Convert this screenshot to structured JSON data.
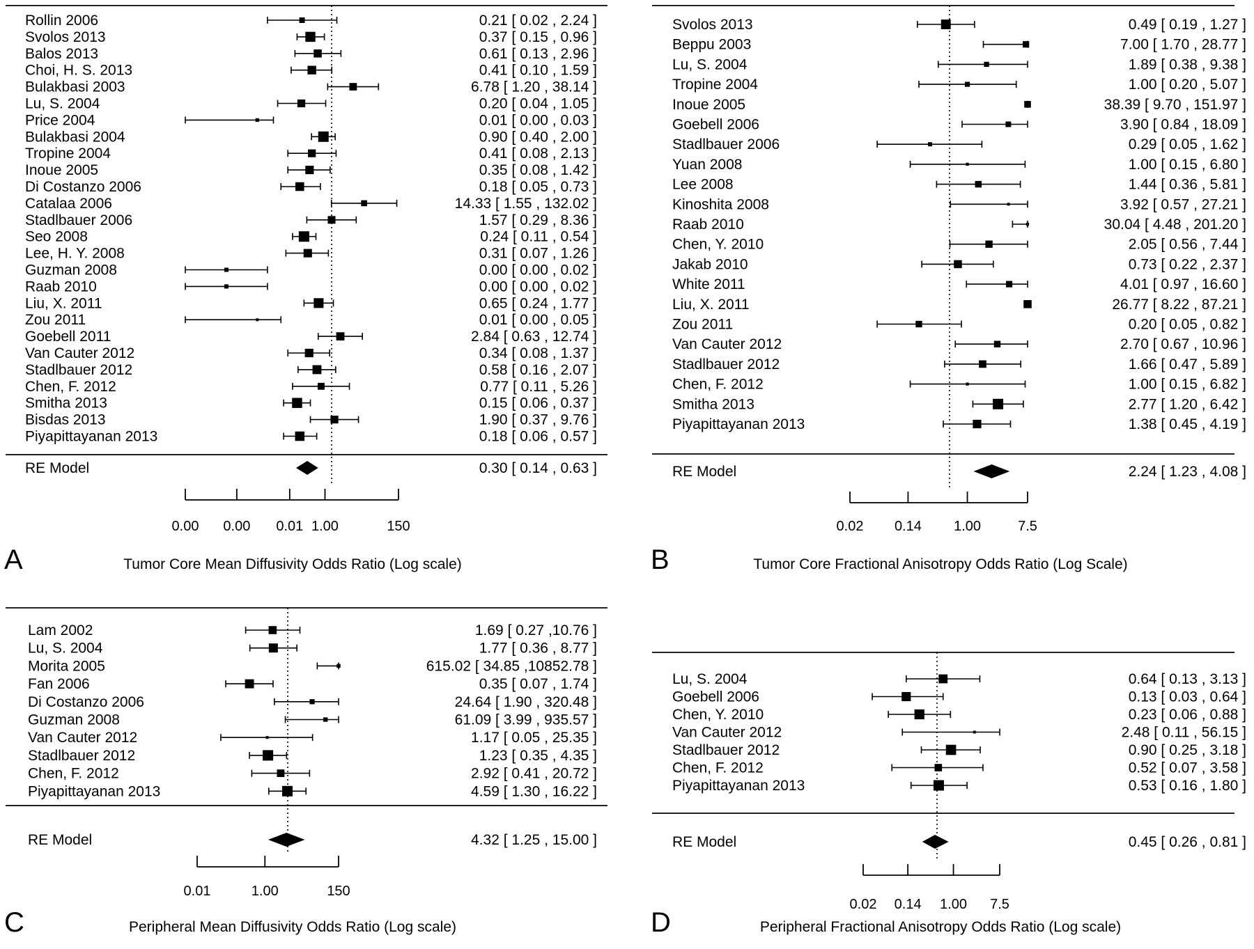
{
  "chart_data": [
    {
      "type": "forest",
      "panel_letter": "A",
      "xlabel": "Tumor Core Mean Diffusivity Odds Ratio (Log scale)",
      "x_ticks": [
        "0.00",
        "0.00",
        "0.01",
        "1.00",
        "150"
      ],
      "studies": [
        {
          "name": "Rollin 2006",
          "or": 0.21,
          "lo": 0.02,
          "hi": 2.24,
          "ci_text": "0.21 [ 0.02 ,  2.24 ]"
        },
        {
          "name": "Svolos 2013",
          "or": 0.37,
          "lo": 0.15,
          "hi": 0.96,
          "ci_text": "0.37 [ 0.15 ,  0.96 ]"
        },
        {
          "name": "Balos 2013",
          "or": 0.61,
          "lo": 0.13,
          "hi": 2.96,
          "ci_text": "0.61 [ 0.13 ,  2.96 ]"
        },
        {
          "name": "Choi, H. S. 2013",
          "or": 0.41,
          "lo": 0.1,
          "hi": 1.59,
          "ci_text": "0.41 [ 0.10 ,  1.59 ]"
        },
        {
          "name": "Bulakbasi 2003",
          "or": 6.78,
          "lo": 1.2,
          "hi": 38.14,
          "ci_text": "6.78 [ 1.20 , 38.14 ]"
        },
        {
          "name": "Lu, S. 2004",
          "or": 0.2,
          "lo": 0.04,
          "hi": 1.05,
          "ci_text": "0.20 [ 0.04 ,  1.05 ]"
        },
        {
          "name": "Price 2004",
          "or": 0.01,
          "lo": 0.0,
          "hi": 0.03,
          "ci_text": "0.01 [ 0.00 ,  0.03 ]"
        },
        {
          "name": "Bulakbasi 2004",
          "or": 0.9,
          "lo": 0.4,
          "hi": 2.0,
          "ci_text": "0.90 [ 0.40 ,  2.00 ]"
        },
        {
          "name": "Tropine 2004",
          "or": 0.41,
          "lo": 0.08,
          "hi": 2.13,
          "ci_text": "0.41 [ 0.08 ,  2.13 ]"
        },
        {
          "name": "Inoue 2005",
          "or": 0.35,
          "lo": 0.08,
          "hi": 1.42,
          "ci_text": "0.35 [ 0.08 ,  1.42 ]"
        },
        {
          "name": "Di Costanzo 2006",
          "or": 0.18,
          "lo": 0.05,
          "hi": 0.73,
          "ci_text": "0.18 [ 0.05 ,  0.73 ]"
        },
        {
          "name": "Catalaa 2006",
          "or": 14.33,
          "lo": 1.55,
          "hi": 132.02,
          "ci_text": "14.33 [ 1.55 , 132.02 ]"
        },
        {
          "name": "Stadlbauer 2006",
          "or": 1.57,
          "lo": 0.29,
          "hi": 8.36,
          "ci_text": "1.57 [ 0.29 ,  8.36 ]"
        },
        {
          "name": "Seo 2008",
          "or": 0.24,
          "lo": 0.11,
          "hi": 0.54,
          "ci_text": "0.24 [ 0.11 ,  0.54 ]"
        },
        {
          "name": "Lee, H. Y. 2008",
          "or": 0.31,
          "lo": 0.07,
          "hi": 1.26,
          "ci_text": "0.31 [ 0.07 ,  1.26 ]"
        },
        {
          "name": "Guzman 2008",
          "or": 0.0,
          "lo": 0.0,
          "hi": 0.02,
          "ci_text": "0.00 [ 0.00 ,  0.02 ]"
        },
        {
          "name": "Raab 2010",
          "or": 0.0,
          "lo": 0.0,
          "hi": 0.02,
          "ci_text": "0.00 [ 0.00 ,  0.02 ]"
        },
        {
          "name": "Liu, X. 2011",
          "or": 0.65,
          "lo": 0.24,
          "hi": 1.77,
          "ci_text": "0.65 [ 0.24 ,  1.77 ]"
        },
        {
          "name": "Zou 2011",
          "or": 0.01,
          "lo": 0.0,
          "hi": 0.05,
          "ci_text": "0.01 [ 0.00 ,  0.05 ]"
        },
        {
          "name": "Goebell 2011",
          "or": 2.84,
          "lo": 0.63,
          "hi": 12.74,
          "ci_text": "2.84 [ 0.63 , 12.74 ]"
        },
        {
          "name": "Van Cauter 2012",
          "or": 0.34,
          "lo": 0.08,
          "hi": 1.37,
          "ci_text": "0.34 [ 0.08 ,  1.37 ]"
        },
        {
          "name": "Stadlbauer 2012",
          "or": 0.58,
          "lo": 0.16,
          "hi": 2.07,
          "ci_text": "0.58 [ 0.16 ,  2.07 ]"
        },
        {
          "name": "Chen, F. 2012",
          "or": 0.77,
          "lo": 0.11,
          "hi": 5.26,
          "ci_text": "0.77 [ 0.11 ,  5.26 ]"
        },
        {
          "name": "Smitha 2013",
          "or": 0.15,
          "lo": 0.06,
          "hi": 0.37,
          "ci_text": "0.15 [ 0.06 ,  0.37 ]"
        },
        {
          "name": "Bisdas 2013",
          "or": 1.9,
          "lo": 0.37,
          "hi": 9.76,
          "ci_text": "1.90 [ 0.37 ,  9.76 ]"
        },
        {
          "name": "Piyapittayanan 2013",
          "or": 0.18,
          "lo": 0.06,
          "hi": 0.57,
          "ci_text": "0.18 [ 0.06 ,  0.57 ]"
        }
      ],
      "summary": {
        "name": "RE Model",
        "or": 0.3,
        "lo": 0.14,
        "hi": 0.63,
        "ci_text": "0.30 [ 0.14 ,  0.63 ]"
      }
    },
    {
      "type": "forest",
      "panel_letter": "B",
      "xlabel": "Tumor Core Fractional Anisotropy Odds Ratio (Log Scale)",
      "x_ticks": [
        "0.02",
        "0.14",
        "1.00",
        "7.5"
      ],
      "studies": [
        {
          "name": "Svolos 2013",
          "or": 0.49,
          "lo": 0.19,
          "hi": 1.27,
          "ci_text": "0.49 [ 0.19 ,  1.27 ]"
        },
        {
          "name": "Beppu 2003",
          "or": 7.0,
          "lo": 1.7,
          "hi": 28.77,
          "ci_text": "7.00 [ 1.70 , 28.77 ]"
        },
        {
          "name": "Lu, S. 2004",
          "or": 1.89,
          "lo": 0.38,
          "hi": 9.38,
          "ci_text": "1.89 [ 0.38 ,  9.38 ]"
        },
        {
          "name": "Tropine 2004",
          "or": 1.0,
          "lo": 0.2,
          "hi": 5.07,
          "ci_text": "1.00 [ 0.20 ,  5.07 ]"
        },
        {
          "name": "Inoue 2005",
          "or": 38.39,
          "lo": 9.7,
          "hi": 151.97,
          "ci_text": "38.39 [ 9.70 , 151.97 ]"
        },
        {
          "name": "Goebell 2006",
          "or": 3.9,
          "lo": 0.84,
          "hi": 18.09,
          "ci_text": "3.90 [ 0.84 , 18.09 ]"
        },
        {
          "name": "Stadlbauer 2006",
          "or": 0.29,
          "lo": 0.05,
          "hi": 1.62,
          "ci_text": "0.29 [ 0.05 ,  1.62 ]"
        },
        {
          "name": "Yuan 2008",
          "or": 1.0,
          "lo": 0.15,
          "hi": 6.8,
          "ci_text": "1.00 [ 0.15 ,  6.80 ]"
        },
        {
          "name": "Lee 2008",
          "or": 1.44,
          "lo": 0.36,
          "hi": 5.81,
          "ci_text": "1.44 [ 0.36 ,  5.81 ]"
        },
        {
          "name": "Kinoshita 2008",
          "or": 3.92,
          "lo": 0.57,
          "hi": 27.21,
          "ci_text": "3.92 [ 0.57 , 27.21 ]"
        },
        {
          "name": "Raab 2010",
          "or": 30.04,
          "lo": 4.48,
          "hi": 201.2,
          "ci_text": "30.04 [ 4.48 , 201.20 ]"
        },
        {
          "name": "Chen, Y. 2010",
          "or": 2.05,
          "lo": 0.56,
          "hi": 7.44,
          "ci_text": "2.05 [ 0.56 ,  7.44 ]"
        },
        {
          "name": "Jakab 2010",
          "or": 0.73,
          "lo": 0.22,
          "hi": 2.37,
          "ci_text": "0.73 [ 0.22 ,  2.37 ]"
        },
        {
          "name": "White 2011",
          "or": 4.01,
          "lo": 0.97,
          "hi": 16.6,
          "ci_text": "4.01 [ 0.97 , 16.60 ]"
        },
        {
          "name": "Liu, X. 2011",
          "or": 26.77,
          "lo": 8.22,
          "hi": 87.21,
          "ci_text": "26.77 [ 8.22 , 87.21 ]"
        },
        {
          "name": "Zou 2011",
          "or": 0.2,
          "lo": 0.05,
          "hi": 0.82,
          "ci_text": "0.20 [ 0.05 ,  0.82 ]"
        },
        {
          "name": "Van Cauter 2012",
          "or": 2.7,
          "lo": 0.67,
          "hi": 10.96,
          "ci_text": "2.70 [ 0.67 , 10.96 ]"
        },
        {
          "name": "Stadlbauer 2012",
          "or": 1.66,
          "lo": 0.47,
          "hi": 5.89,
          "ci_text": "1.66 [ 0.47 ,  5.89 ]"
        },
        {
          "name": "Chen, F. 2012",
          "or": 1.0,
          "lo": 0.15,
          "hi": 6.82,
          "ci_text": "1.00 [ 0.15 ,  6.82 ]"
        },
        {
          "name": "Smitha 2013",
          "or": 2.77,
          "lo": 1.2,
          "hi": 6.42,
          "ci_text": "2.77 [ 1.20 ,  6.42 ]"
        },
        {
          "name": "Piyapittayanan 2013",
          "or": 1.38,
          "lo": 0.45,
          "hi": 4.19,
          "ci_text": "1.38 [ 0.45 ,  4.19 ]"
        }
      ],
      "summary": {
        "name": "RE Model",
        "or": 2.24,
        "lo": 1.23,
        "hi": 4.08,
        "ci_text": "2.24 [ 1.23 ,  4.08 ]"
      }
    },
    {
      "type": "forest",
      "panel_letter": "C",
      "xlabel": "Peripheral Mean Diffusivity Odds Ratio (Log scale)",
      "x_ticks": [
        "0.01",
        "1.00",
        "150"
      ],
      "studies": [
        {
          "name": "Lam 2002",
          "or": 1.69,
          "lo": 0.27,
          "hi": 10.76,
          "ci_text": "1.69 [  0.27 ,10.76 ]"
        },
        {
          "name": "Lu, S. 2004",
          "or": 1.77,
          "lo": 0.36,
          "hi": 8.77,
          "ci_text": "1.77 [  0.36 ,  8.77 ]"
        },
        {
          "name": "Morita 2005",
          "or": 615.02,
          "lo": 34.85,
          "hi": 10852.78,
          "ci_text": "615.02 [ 34.85 ,10852.78 ]"
        },
        {
          "name": "Fan 2006",
          "or": 0.35,
          "lo": 0.07,
          "hi": 1.74,
          "ci_text": "0.35 [  0.07 ,  1.74 ]"
        },
        {
          "name": "Di Costanzo 2006",
          "or": 24.64,
          "lo": 1.9,
          "hi": 320.48,
          "ci_text": "24.64 [  1.90 , 320.48 ]"
        },
        {
          "name": "Guzman 2008",
          "or": 61.09,
          "lo": 3.99,
          "hi": 935.57,
          "ci_text": "61.09 [  3.99 , 935.57 ]"
        },
        {
          "name": "Van Cauter 2012",
          "or": 1.17,
          "lo": 0.05,
          "hi": 25.35,
          "ci_text": "1.17 [  0.05 , 25.35 ]"
        },
        {
          "name": "Stadlbauer 2012",
          "or": 1.23,
          "lo": 0.35,
          "hi": 4.35,
          "ci_text": "1.23 [  0.35 ,  4.35 ]"
        },
        {
          "name": "Chen, F. 2012",
          "or": 2.92,
          "lo": 0.41,
          "hi": 20.72,
          "ci_text": "2.92 [  0.41 , 20.72 ]"
        },
        {
          "name": "Piyapittayanan 2013",
          "or": 4.59,
          "lo": 1.3,
          "hi": 16.22,
          "ci_text": "4.59 [  1.30 , 16.22 ]"
        }
      ],
      "summary": {
        "name": "RE Model",
        "or": 4.32,
        "lo": 1.25,
        "hi": 15.0,
        "ci_text": "4.32 [  1.25 ,     15.00 ]"
      }
    },
    {
      "type": "forest",
      "panel_letter": "D",
      "xlabel": "Peripheral Fractional Anisotropy Odds Ratio (Log scale)",
      "x_ticks": [
        "0.02",
        "0.14",
        "1.00",
        "7.5"
      ],
      "studies": [
        {
          "name": "Lu, S. 2004",
          "or": 0.64,
          "lo": 0.13,
          "hi": 3.13,
          "ci_text": "0.64 [ 0.13 ,  3.13 ]"
        },
        {
          "name": "Goebell 2006",
          "or": 0.13,
          "lo": 0.03,
          "hi": 0.64,
          "ci_text": "0.13 [ 0.03 ,  0.64 ]"
        },
        {
          "name": "Chen, Y. 2010",
          "or": 0.23,
          "lo": 0.06,
          "hi": 0.88,
          "ci_text": "0.23 [ 0.06 ,  0.88 ]"
        },
        {
          "name": "Van Cauter 2012",
          "or": 2.48,
          "lo": 0.11,
          "hi": 56.15,
          "ci_text": "2.48 [ 0.11 , 56.15 ]"
        },
        {
          "name": "Stadlbauer 2012",
          "or": 0.9,
          "lo": 0.25,
          "hi": 3.18,
          "ci_text": "0.90 [ 0.25 ,  3.18 ]"
        },
        {
          "name": "Chen, F. 2012",
          "or": 0.52,
          "lo": 0.07,
          "hi": 3.58,
          "ci_text": "0.52 [ 0.07 ,  3.58 ]"
        },
        {
          "name": "Piyapittayanan 2013",
          "or": 0.53,
          "lo": 0.16,
          "hi": 1.8,
          "ci_text": "0.53 [ 0.16 ,  1.80 ]"
        }
      ],
      "summary": {
        "name": "RE Model",
        "or": 0.45,
        "lo": 0.26,
        "hi": 0.81,
        "ci_text": "0.45 [ 0.26 ,  0.81 ]"
      }
    }
  ]
}
